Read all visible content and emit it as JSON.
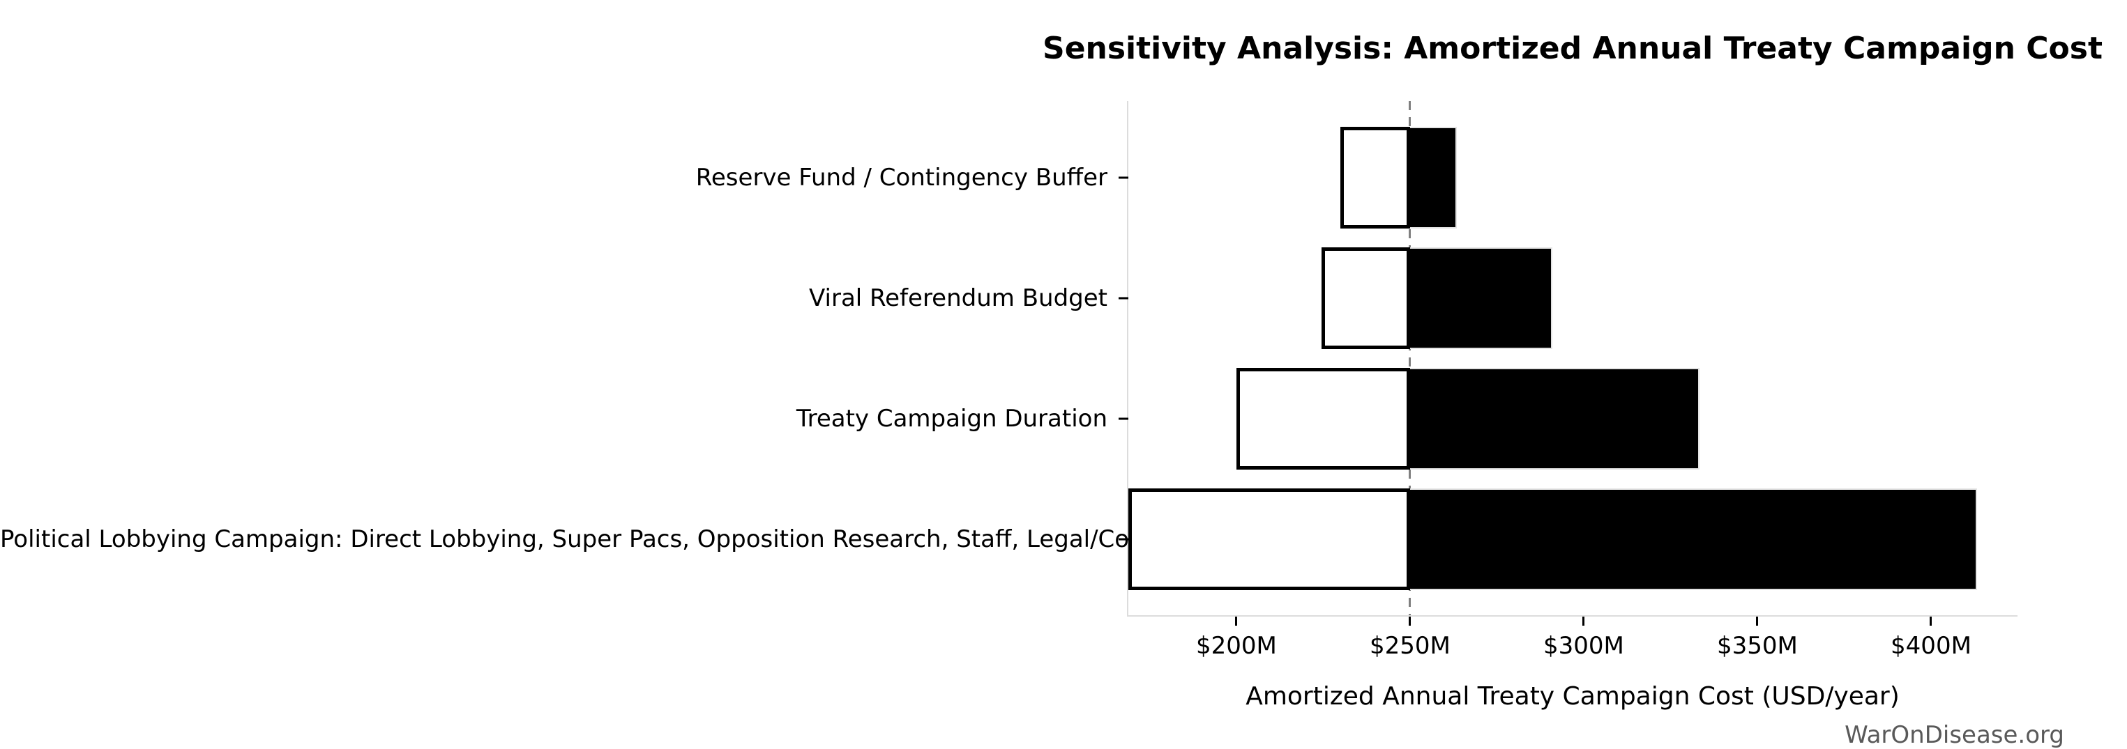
{
  "page": {
    "background": "#ffffff"
  },
  "chart_data": {
    "type": "bar",
    "variant": "tornado-sensitivity",
    "orientation": "horizontal",
    "title": "Sensitivity Analysis: Amortized Annual Treaty Campaign Cost",
    "xlabel": "Amortized Annual Treaty Campaign Cost (USD/year)",
    "watermark": "WarOnDisease.org",
    "value_unit": "USD millions per year",
    "baseline": 250,
    "xlim": [
      168.9,
      424.9
    ],
    "xticks": [
      200,
      250,
      300,
      350,
      400
    ],
    "xtick_labels": [
      "$200M",
      "$250M",
      "$300M",
      "$350M",
      "$400M"
    ],
    "grid": false,
    "legend": false,
    "baseline_line": "vertical dashed gray at $250M",
    "categories": [
      {
        "label": "Reserve Fund / Contingency Buffer",
        "low": 230.0,
        "high": 263.5
      },
      {
        "label": "Viral Referendum Budget",
        "low": 224.6,
        "high": 290.9
      },
      {
        "label": "Treaty Campaign Duration",
        "low": 200.0,
        "high": 333.3
      },
      {
        "label": "Political Lobbying Campaign: Direct Lobbying, Super Pacs, Opposition Research, Staff, Legal/Compliance",
        "low": 168.9,
        "high": 413.3
      }
    ],
    "colors": {
      "low_side_fill": "#ffffff",
      "low_side_edge": "#000000",
      "high_side_fill": "#000000",
      "high_side_edge": "#e3e3e3",
      "baseline_color": "#7f7f7f",
      "spine_color": "#dcdcdc",
      "watermark_color": "#595959",
      "text_color": "#000000"
    }
  }
}
